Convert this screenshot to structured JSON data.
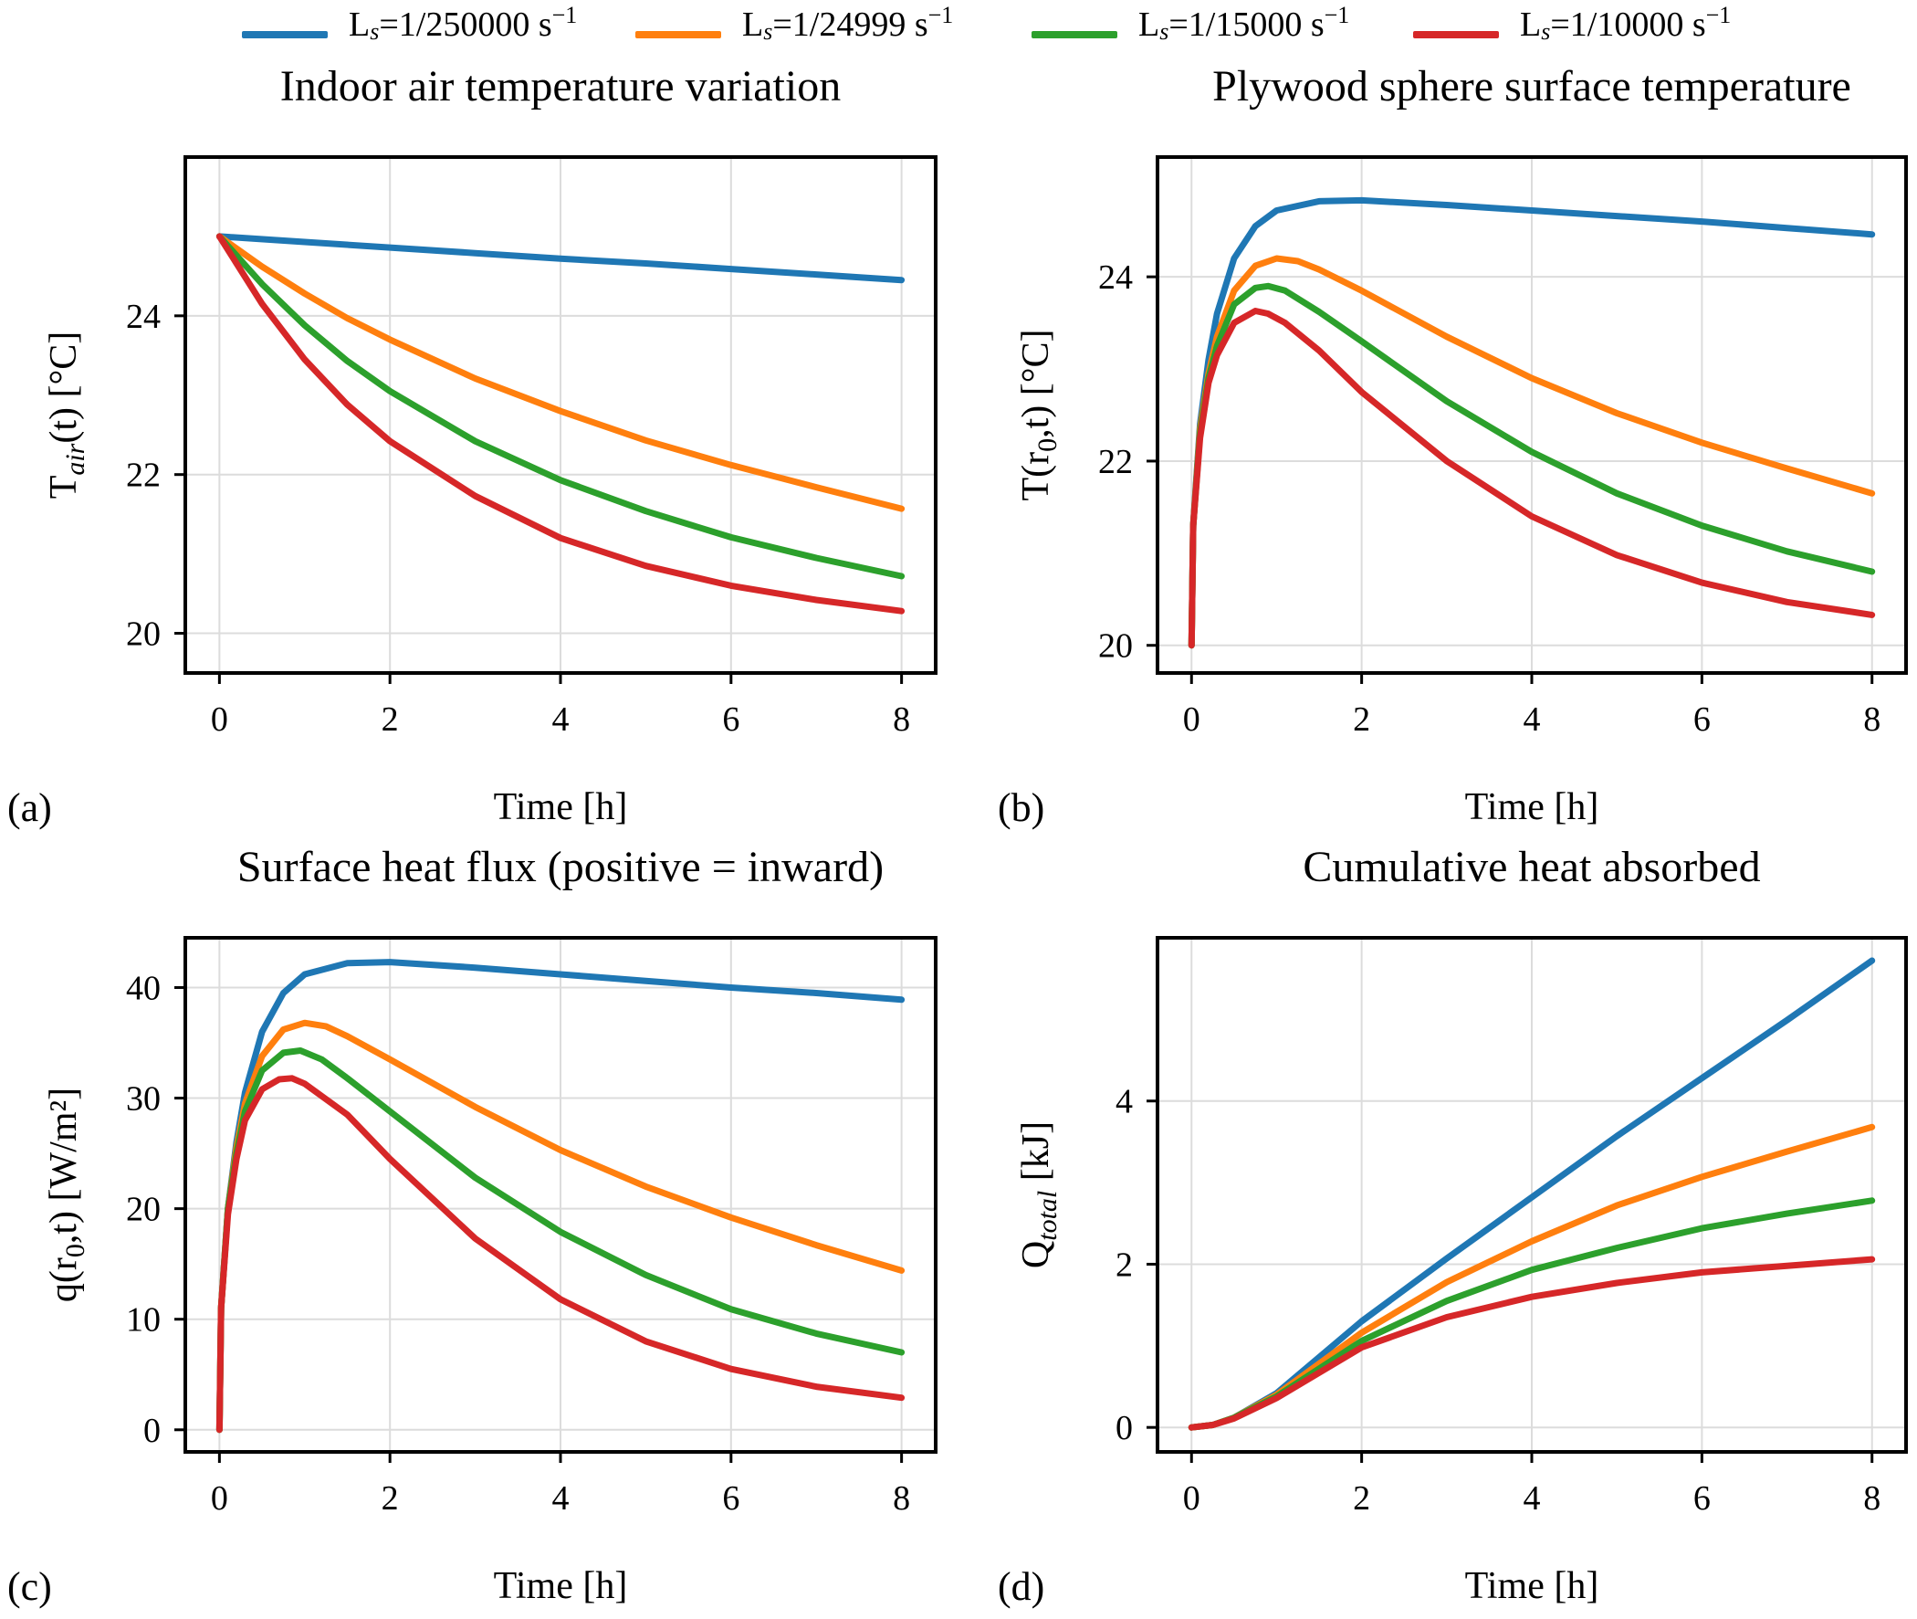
{
  "legend": {
    "unit": "s",
    "superscript": "−1",
    "entries": [
      {
        "prefix": "L",
        "sub": "s",
        "value": "=1/250000 ",
        "color": "#1f77b4"
      },
      {
        "prefix": "L",
        "sub": "s",
        "value": "=1/24999 ",
        "color": "#ff7f0e"
      },
      {
        "prefix": "L",
        "sub": "s",
        "value": "=1/15000 ",
        "color": "#2ca02c"
      },
      {
        "prefix": "L",
        "sub": "s",
        "value": "=1/10000 ",
        "color": "#d62728"
      }
    ]
  },
  "chart_data": [
    {
      "type": "line",
      "panel_label": "(a)",
      "title": "Indoor air temperature variation",
      "xlabel": "Time [h]",
      "ylabel": {
        "main": "T",
        "sub": "air",
        "rest": "(t) [°C]"
      },
      "xlim": [
        -0.4,
        8.4
      ],
      "ylim": [
        19.5,
        26.0
      ],
      "xticks": [
        0,
        2,
        4,
        6,
        8
      ],
      "yticks": [
        20,
        22,
        24
      ],
      "grid": true,
      "series": [
        {
          "name": "L_s=1/250000 s^-1",
          "color": "#1f77b4",
          "x": [
            0,
            1,
            2,
            3,
            4,
            5,
            6,
            7,
            8
          ],
          "y": [
            25.0,
            24.93,
            24.86,
            24.79,
            24.72,
            24.66,
            24.59,
            24.52,
            24.45
          ]
        },
        {
          "name": "L_s=1/24999 s^-1",
          "color": "#ff7f0e",
          "x": [
            0,
            0.5,
            1,
            1.5,
            2,
            3,
            4,
            5,
            6,
            7,
            8
          ],
          "y": [
            25.0,
            24.62,
            24.28,
            23.97,
            23.7,
            23.21,
            22.8,
            22.43,
            22.12,
            21.84,
            21.57
          ]
        },
        {
          "name": "L_s=1/15000 s^-1",
          "color": "#2ca02c",
          "x": [
            0,
            0.5,
            1,
            1.5,
            2,
            3,
            4,
            5,
            6,
            7,
            8
          ],
          "y": [
            25.0,
            24.4,
            23.88,
            23.43,
            23.05,
            22.42,
            21.93,
            21.54,
            21.21,
            20.95,
            20.72
          ]
        },
        {
          "name": "L_s=1/10000 s^-1",
          "color": "#d62728",
          "x": [
            0,
            0.5,
            1,
            1.5,
            2,
            3,
            4,
            5,
            6,
            7,
            8
          ],
          "y": [
            25.0,
            24.15,
            23.45,
            22.88,
            22.42,
            21.73,
            21.2,
            20.85,
            20.6,
            20.42,
            20.28
          ]
        }
      ]
    },
    {
      "type": "line",
      "panel_label": "(b)",
      "title": "Plywood sphere surface temperature",
      "xlabel": "Time [h]",
      "ylabel": {
        "main": "T(r",
        "sub": "0",
        "rest": ",t) [°C]"
      },
      "xlim": [
        -0.4,
        8.4
      ],
      "ylim": [
        19.7,
        25.3
      ],
      "xticks": [
        0,
        2,
        4,
        6,
        8
      ],
      "yticks": [
        20,
        22,
        24
      ],
      "grid": true,
      "series": [
        {
          "name": "L_s=1/250000 s^-1",
          "color": "#1f77b4",
          "x": [
            0,
            0.02,
            0.1,
            0.2,
            0.3,
            0.5,
            0.75,
            1,
            1.5,
            2,
            3,
            4,
            5,
            6,
            7,
            8
          ],
          "y": [
            20.0,
            21.3,
            22.4,
            23.1,
            23.6,
            24.2,
            24.55,
            24.72,
            24.82,
            24.83,
            24.78,
            24.72,
            24.66,
            24.6,
            24.53,
            24.46
          ]
        },
        {
          "name": "L_s=1/24999 s^-1",
          "color": "#ff7f0e",
          "x": [
            0,
            0.02,
            0.1,
            0.2,
            0.3,
            0.5,
            0.75,
            1,
            1.25,
            1.5,
            2,
            3,
            4,
            5,
            6,
            7,
            8
          ],
          "y": [
            20.0,
            21.3,
            22.35,
            22.95,
            23.35,
            23.85,
            24.12,
            24.2,
            24.17,
            24.08,
            23.85,
            23.35,
            22.9,
            22.52,
            22.2,
            21.92,
            21.65
          ]
        },
        {
          "name": "L_s=1/15000 s^-1",
          "color": "#2ca02c",
          "x": [
            0,
            0.02,
            0.1,
            0.2,
            0.3,
            0.5,
            0.75,
            0.9,
            1.1,
            1.5,
            2,
            3,
            4,
            5,
            6,
            7,
            8
          ],
          "y": [
            20.0,
            21.3,
            22.3,
            22.9,
            23.25,
            23.7,
            23.88,
            23.9,
            23.85,
            23.62,
            23.3,
            22.65,
            22.1,
            21.65,
            21.3,
            21.02,
            20.8
          ]
        },
        {
          "name": "L_s=1/10000 s^-1",
          "color": "#d62728",
          "x": [
            0,
            0.02,
            0.1,
            0.2,
            0.3,
            0.5,
            0.75,
            0.9,
            1.1,
            1.5,
            2,
            3,
            4,
            5,
            6,
            7,
            8
          ],
          "y": [
            20.0,
            21.3,
            22.25,
            22.85,
            23.15,
            23.5,
            23.63,
            23.6,
            23.5,
            23.2,
            22.75,
            22.0,
            21.4,
            20.98,
            20.68,
            20.47,
            20.33
          ]
        }
      ]
    },
    {
      "type": "line",
      "panel_label": "(c)",
      "title": "Surface heat flux (positive = inward)",
      "xlabel": "Time [h]",
      "ylabel": {
        "main": "q(r",
        "sub": "0",
        "rest": ",t) [W/m²]"
      },
      "xlim": [
        -0.4,
        8.4
      ],
      "ylim": [
        -2,
        44.5
      ],
      "xticks": [
        0,
        2,
        4,
        6,
        8
      ],
      "yticks": [
        0,
        10,
        20,
        30,
        40
      ],
      "grid": true,
      "series": [
        {
          "name": "L_s=1/250000 s^-1",
          "color": "#1f77b4",
          "x": [
            0,
            0.02,
            0.1,
            0.2,
            0.3,
            0.5,
            0.75,
            1,
            1.5,
            2,
            3,
            4,
            5,
            6,
            7,
            8
          ],
          "y": [
            0,
            11,
            20,
            26,
            30.5,
            36,
            39.5,
            41.2,
            42.2,
            42.3,
            41.8,
            41.2,
            40.6,
            40.0,
            39.5,
            38.9
          ]
        },
        {
          "name": "L_s=1/24999 s^-1",
          "color": "#ff7f0e",
          "x": [
            0,
            0.02,
            0.1,
            0.2,
            0.3,
            0.5,
            0.75,
            1,
            1.25,
            1.5,
            2,
            3,
            4,
            5,
            6,
            7,
            8
          ],
          "y": [
            0,
            11,
            20,
            25.5,
            29.5,
            33.8,
            36.2,
            36.8,
            36.5,
            35.6,
            33.5,
            29.2,
            25.3,
            22.0,
            19.2,
            16.7,
            14.4
          ]
        },
        {
          "name": "L_s=1/15000 s^-1",
          "color": "#2ca02c",
          "x": [
            0,
            0.02,
            0.1,
            0.2,
            0.3,
            0.5,
            0.75,
            0.95,
            1.2,
            1.5,
            2,
            3,
            4,
            5,
            6,
            7,
            8
          ],
          "y": [
            0,
            11,
            20,
            25,
            28.8,
            32.5,
            34.1,
            34.3,
            33.5,
            31.8,
            28.8,
            22.8,
            17.9,
            14.0,
            10.9,
            8.7,
            7.0
          ]
        },
        {
          "name": "L_s=1/10000 s^-1",
          "color": "#d62728",
          "x": [
            0,
            0.02,
            0.1,
            0.2,
            0.3,
            0.5,
            0.7,
            0.85,
            1,
            1.5,
            2,
            3,
            4,
            5,
            6,
            7,
            8
          ],
          "y": [
            0,
            11,
            19.5,
            24.5,
            28,
            30.8,
            31.7,
            31.8,
            31.3,
            28.5,
            24.5,
            17.3,
            11.8,
            8.0,
            5.5,
            3.9,
            2.9
          ]
        }
      ]
    },
    {
      "type": "line",
      "panel_label": "(d)",
      "title": "Cumulative heat absorbed",
      "xlabel": "Time [h]",
      "ylabel": {
        "main": "Q",
        "sub": "total",
        "rest": " [kJ]"
      },
      "xlim": [
        -0.4,
        8.4
      ],
      "ylim": [
        -0.3,
        6.0
      ],
      "xticks": [
        0,
        2,
        4,
        6,
        8
      ],
      "yticks": [
        0,
        2,
        4
      ],
      "grid": true,
      "series": [
        {
          "name": "L_s=1/250000 s^-1",
          "color": "#1f77b4",
          "x": [
            0,
            0.25,
            0.5,
            1,
            2,
            3,
            4,
            5,
            6,
            7,
            8
          ],
          "y": [
            0,
            0.03,
            0.12,
            0.42,
            1.3,
            2.07,
            2.82,
            3.57,
            4.28,
            4.99,
            5.72
          ]
        },
        {
          "name": "L_s=1/24999 s^-1",
          "color": "#ff7f0e",
          "x": [
            0,
            0.25,
            0.5,
            1,
            2,
            3,
            4,
            5,
            6,
            7,
            8
          ],
          "y": [
            0,
            0.03,
            0.12,
            0.4,
            1.16,
            1.78,
            2.28,
            2.72,
            3.07,
            3.38,
            3.68
          ]
        },
        {
          "name": "L_s=1/15000 s^-1",
          "color": "#2ca02c",
          "x": [
            0,
            0.25,
            0.5,
            1,
            2,
            3,
            4,
            5,
            6,
            7,
            8
          ],
          "y": [
            0,
            0.03,
            0.12,
            0.38,
            1.06,
            1.55,
            1.93,
            2.2,
            2.44,
            2.62,
            2.78
          ]
        },
        {
          "name": "L_s=1/10000 s^-1",
          "color": "#d62728",
          "x": [
            0,
            0.25,
            0.5,
            1,
            2,
            3,
            4,
            5,
            6,
            7,
            8
          ],
          "y": [
            0,
            0.03,
            0.11,
            0.36,
            0.98,
            1.35,
            1.6,
            1.77,
            1.9,
            1.98,
            2.06
          ]
        }
      ]
    }
  ]
}
